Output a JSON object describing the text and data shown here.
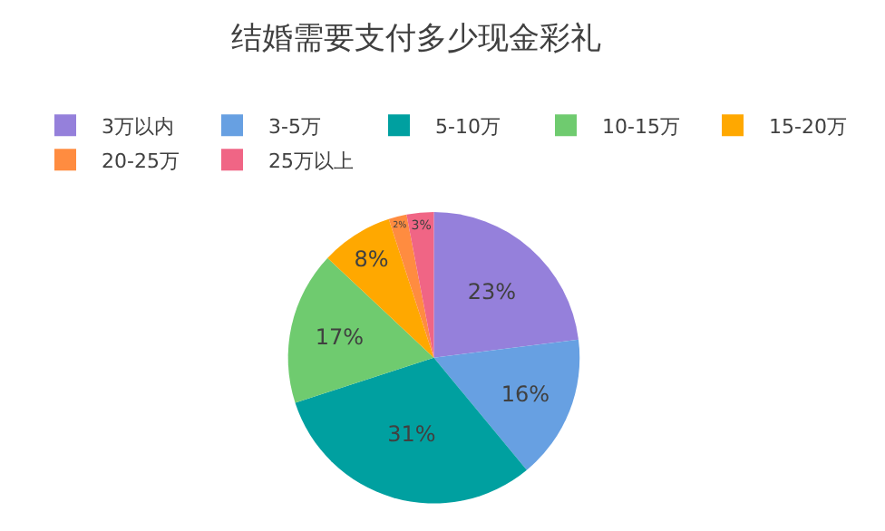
{
  "chart_data": {
    "type": "pie",
    "title": "结婚需要支付多少现金彩礼",
    "categories": [
      "3万以内",
      "3-5万",
      "5-10万",
      "10-15万",
      "15-20万",
      "20-25万",
      "25万以上"
    ],
    "values": [
      23,
      16,
      31,
      17,
      8,
      2,
      3
    ],
    "value_labels": [
      "23%",
      "16%",
      "31%",
      "17%",
      "8%",
      "2%",
      "3%"
    ],
    "colors": [
      "#9580db",
      "#67a0e2",
      "#00a0a0",
      "#6fcb6f",
      "#ffa800",
      "#ff8c40",
      "#f06585"
    ],
    "legend": "top"
  }
}
